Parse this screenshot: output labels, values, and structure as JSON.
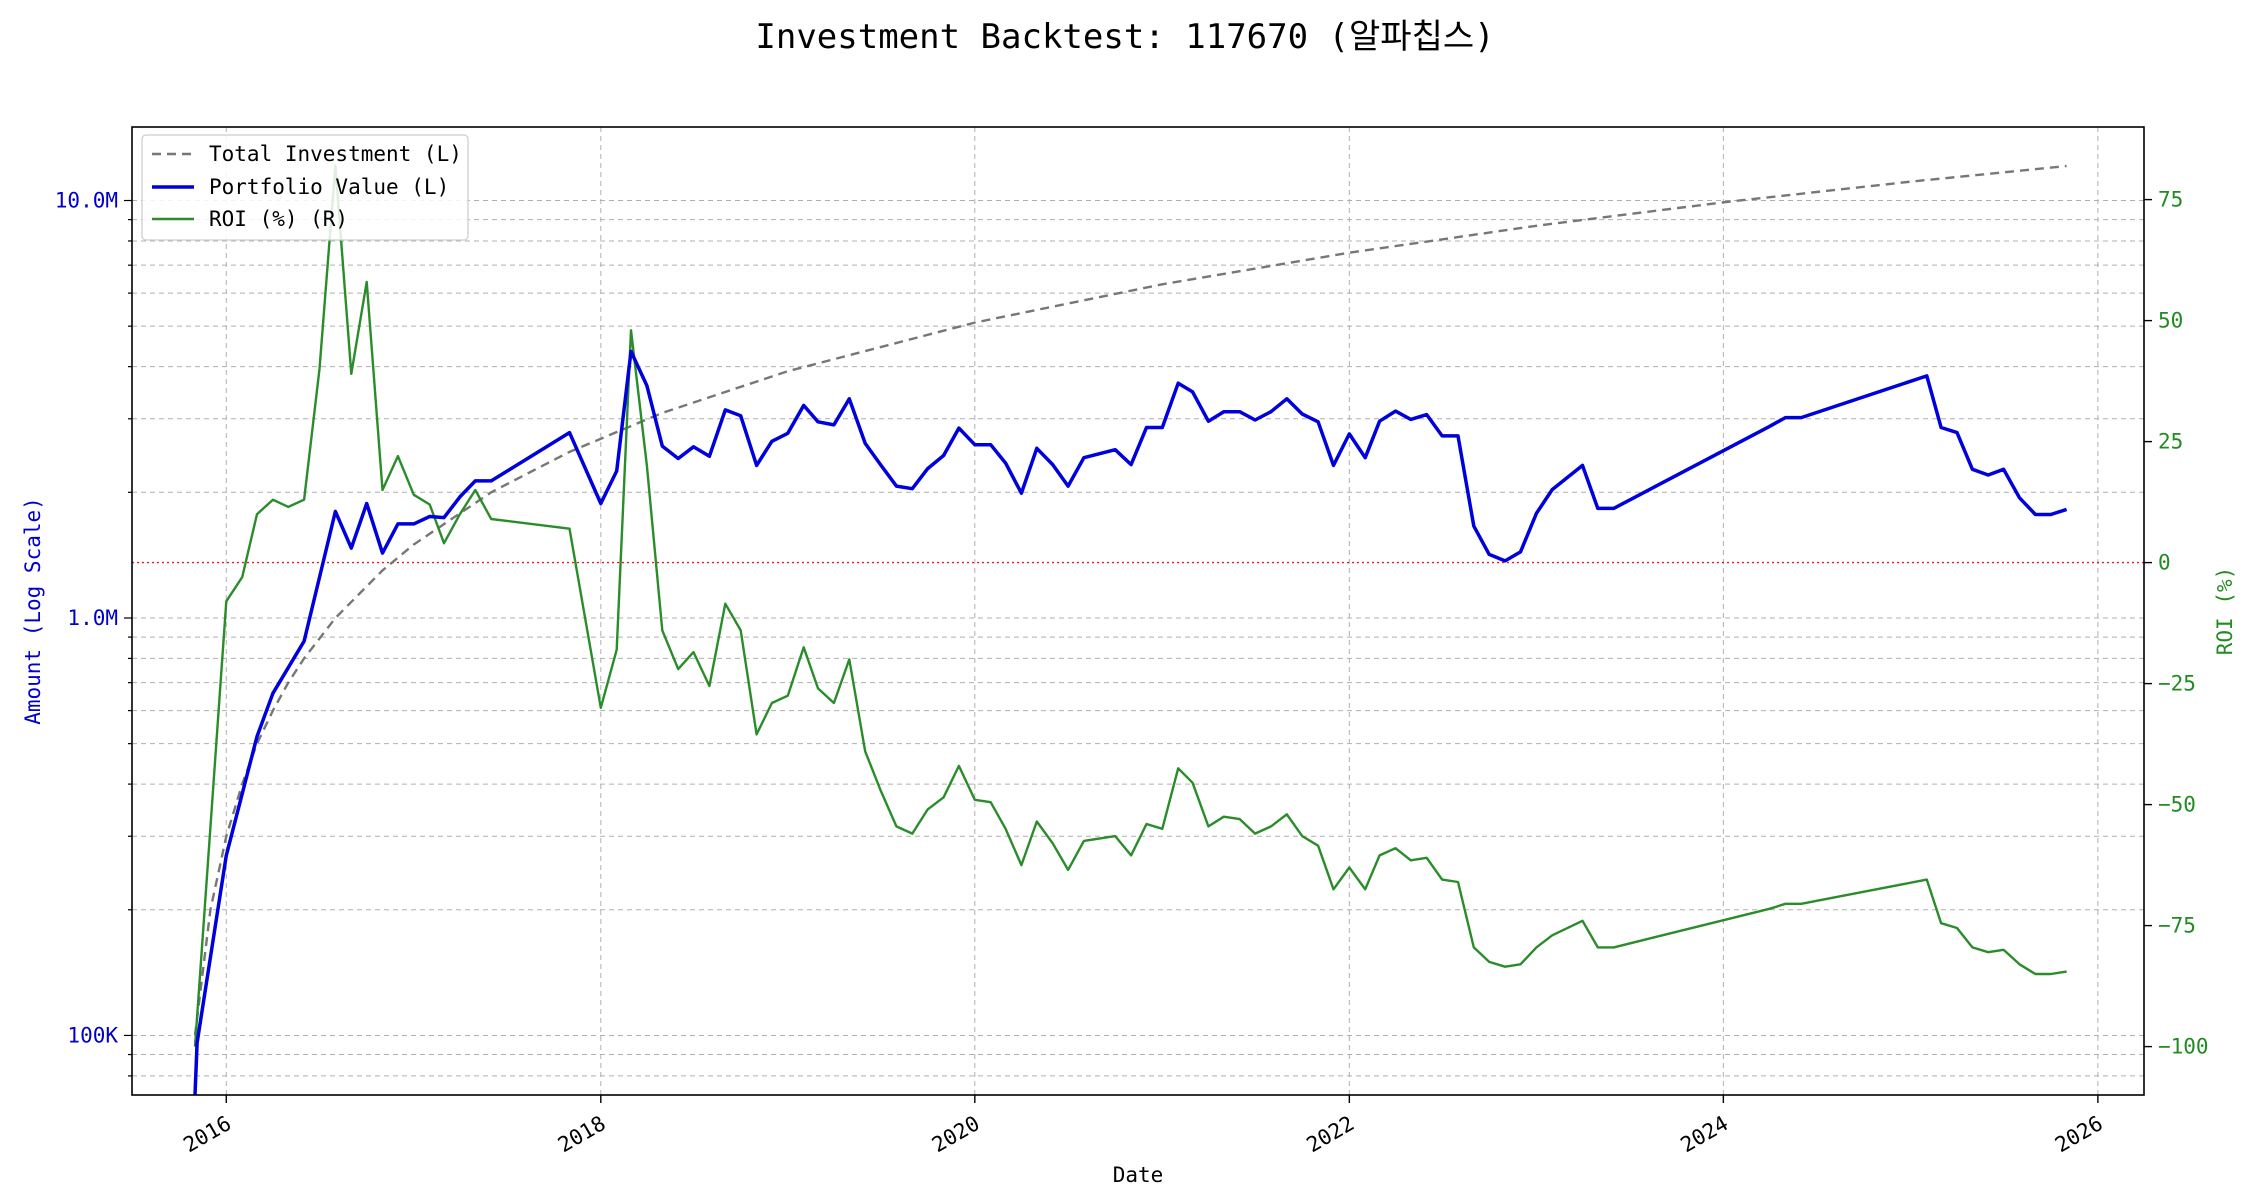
{
  "chart_data": {
    "type": "line",
    "title": "Investment Backtest: 117670 (알파칩스)",
    "xlabel": "Date",
    "ylabel_left": "Amount (Log Scale)",
    "ylabel_right": "ROI (%)",
    "x_range": [
      "2015-07-01",
      "2026-04-01"
    ],
    "ylim_left": [
      72000,
      15000000
    ],
    "yscale_left": "log",
    "ylim_right": [
      -110,
      90
    ],
    "grid": true,
    "legend_position": "top-left",
    "x_ticks": [
      "2016",
      "2018",
      "2020",
      "2022",
      "2024",
      "2026"
    ],
    "y_left_ticks": [
      {
        "value": 100000,
        "label": "100K"
      },
      {
        "value": 1000000,
        "label": "1.0M"
      },
      {
        "value": 10000000,
        "label": "10.0M"
      }
    ],
    "y_right_ticks": [
      {
        "value": 75,
        "label": "75"
      },
      {
        "value": 50,
        "label": "50"
      },
      {
        "value": 25,
        "label": "25"
      },
      {
        "value": 0,
        "label": "0"
      },
      {
        "value": -25,
        "label": "−25"
      },
      {
        "value": -50,
        "label": "−50"
      },
      {
        "value": -75,
        "label": "−75"
      },
      {
        "value": -100,
        "label": "−100"
      }
    ],
    "reference_line": {
      "axis": "right",
      "value": 0,
      "color": "#e41a1c",
      "style": "dotted"
    },
    "series": [
      {
        "name": "Total Investment (L)",
        "axis": "left",
        "color": "#777777",
        "style": "dashed",
        "points": [
          [
            "2015-11-01",
            100000
          ],
          [
            "2015-12-01",
            200000
          ],
          [
            "2016-01-01",
            300000
          ],
          [
            "2016-02-01",
            400000
          ],
          [
            "2016-03-01",
            500000
          ],
          [
            "2016-04-01",
            600000
          ],
          [
            "2016-05-01",
            700000
          ],
          [
            "2016-06-01",
            800000
          ],
          [
            "2016-08-01",
            1000000
          ],
          [
            "2016-11-01",
            1300000
          ],
          [
            "2017-01-01",
            1500000
          ],
          [
            "2017-06-01",
            2000000
          ],
          [
            "2017-11-01",
            2500000
          ],
          [
            "2018-05-01",
            3100000
          ],
          [
            "2019-01-01",
            3900000
          ],
          [
            "2020-01-01",
            5100000
          ],
          [
            "2021-01-01",
            6300000
          ],
          [
            "2022-01-01",
            7500000
          ],
          [
            "2023-01-01",
            8700000
          ],
          [
            "2024-01-01",
            9900000
          ],
          [
            "2025-01-01",
            11100000
          ],
          [
            "2025-11-01",
            12100000
          ]
        ]
      },
      {
        "name": "Portfolio Value (L)",
        "axis": "left",
        "color": "#0000dd",
        "style": "solid",
        "points": [
          [
            "2015-11-01",
            72000
          ],
          [
            "2015-11-05",
            96000
          ],
          [
            "2016-01-01",
            270000
          ],
          [
            "2016-03-01",
            520000
          ],
          [
            "2016-04-01",
            660000
          ],
          [
            "2016-06-01",
            880000
          ],
          [
            "2016-08-01",
            1800000
          ],
          [
            "2016-09-01",
            1470000
          ],
          [
            "2016-10-01",
            1880000
          ],
          [
            "2016-11-01",
            1430000
          ],
          [
            "2016-12-01",
            1680000
          ],
          [
            "2017-01-01",
            1680000
          ],
          [
            "2017-02-01",
            1750000
          ],
          [
            "2017-03-01",
            1740000
          ],
          [
            "2017-04-01",
            1950000
          ],
          [
            "2017-05-01",
            2130000
          ],
          [
            "2017-06-01",
            2130000
          ],
          [
            "2017-11-01",
            2780000
          ],
          [
            "2018-01-01",
            1880000
          ],
          [
            "2018-02-01",
            2250000
          ],
          [
            "2018-03-01",
            4350000
          ],
          [
            "2018-04-01",
            3600000
          ],
          [
            "2018-05-01",
            2580000
          ],
          [
            "2018-06-01",
            2410000
          ],
          [
            "2018-07-01",
            2570000
          ],
          [
            "2018-08-01",
            2440000
          ],
          [
            "2018-09-01",
            3150000
          ],
          [
            "2018-10-01",
            3050000
          ],
          [
            "2018-11-01",
            2320000
          ],
          [
            "2018-12-01",
            2650000
          ],
          [
            "2019-01-01",
            2770000
          ],
          [
            "2019-02-01",
            3230000
          ],
          [
            "2019-03-01",
            2950000
          ],
          [
            "2019-04-01",
            2900000
          ],
          [
            "2019-05-01",
            3350000
          ],
          [
            "2019-06-01",
            2620000
          ],
          [
            "2019-07-01",
            2330000
          ],
          [
            "2019-08-01",
            2070000
          ],
          [
            "2019-09-01",
            2040000
          ],
          [
            "2019-10-01",
            2280000
          ],
          [
            "2019-11-01",
            2450000
          ],
          [
            "2019-12-01",
            2850000
          ],
          [
            "2020-01-01",
            2600000
          ],
          [
            "2020-02-01",
            2600000
          ],
          [
            "2020-03-01",
            2350000
          ],
          [
            "2020-04-01",
            1990000
          ],
          [
            "2020-05-01",
            2550000
          ],
          [
            "2020-06-01",
            2330000
          ],
          [
            "2020-07-01",
            2070000
          ],
          [
            "2020-08-01",
            2420000
          ],
          [
            "2020-10-01",
            2530000
          ],
          [
            "2020-11-01",
            2330000
          ],
          [
            "2020-12-01",
            2860000
          ],
          [
            "2021-01-01",
            2860000
          ],
          [
            "2021-02-01",
            3650000
          ],
          [
            "2021-03-01",
            3480000
          ],
          [
            "2021-04-01",
            2960000
          ],
          [
            "2021-05-01",
            3120000
          ],
          [
            "2021-06-01",
            3120000
          ],
          [
            "2021-07-01",
            2980000
          ],
          [
            "2021-08-01",
            3120000
          ],
          [
            "2021-09-01",
            3350000
          ],
          [
            "2021-10-01",
            3080000
          ],
          [
            "2021-11-01",
            2950000
          ],
          [
            "2021-12-01",
            2320000
          ],
          [
            "2022-01-01",
            2760000
          ],
          [
            "2022-02-01",
            2420000
          ],
          [
            "2022-03-01",
            2960000
          ],
          [
            "2022-04-01",
            3130000
          ],
          [
            "2022-05-01",
            2990000
          ],
          [
            "2022-06-01",
            3070000
          ],
          [
            "2022-07-01",
            2730000
          ],
          [
            "2022-08-01",
            2730000
          ],
          [
            "2022-09-01",
            1660000
          ],
          [
            "2022-10-01",
            1420000
          ],
          [
            "2022-11-01",
            1370000
          ],
          [
            "2022-12-01",
            1440000
          ],
          [
            "2023-01-01",
            1780000
          ],
          [
            "2023-02-01",
            2030000
          ],
          [
            "2023-04-01",
            2320000
          ],
          [
            "2023-05-01",
            1830000
          ],
          [
            "2023-06-01",
            1830000
          ],
          [
            "2024-04-01",
            2880000
          ],
          [
            "2024-05-01",
            3020000
          ],
          [
            "2024-06-01",
            3020000
          ],
          [
            "2025-02-01",
            3800000
          ],
          [
            "2025-03-01",
            2860000
          ],
          [
            "2025-04-01",
            2780000
          ],
          [
            "2025-05-01",
            2270000
          ],
          [
            "2025-06-01",
            2200000
          ],
          [
            "2025-07-01",
            2270000
          ],
          [
            "2025-08-01",
            1940000
          ],
          [
            "2025-09-01",
            1770000
          ],
          [
            "2025-10-01",
            1770000
          ],
          [
            "2025-11-01",
            1820000
          ]
        ]
      },
      {
        "name": "ROI (%) (R)",
        "axis": "right",
        "color": "#2a8c2a",
        "style": "solid",
        "points": [
          [
            "2015-11-01",
            -100
          ],
          [
            "2016-01-01",
            -8
          ],
          [
            "2016-02-01",
            -3
          ],
          [
            "2016-03-01",
            10
          ],
          [
            "2016-04-01",
            13
          ],
          [
            "2016-05-01",
            11.5
          ],
          [
            "2016-06-01",
            13
          ],
          [
            "2016-07-01",
            40
          ],
          [
            "2016-08-01",
            82
          ],
          [
            "2016-09-01",
            39
          ],
          [
            "2016-10-01",
            58
          ],
          [
            "2016-11-01",
            15
          ],
          [
            "2016-12-01",
            22
          ],
          [
            "2017-01-01",
            14
          ],
          [
            "2017-02-01",
            12
          ],
          [
            "2017-03-01",
            4
          ],
          [
            "2017-04-01",
            10
          ],
          [
            "2017-05-01",
            15
          ],
          [
            "2017-06-01",
            9
          ],
          [
            "2017-11-01",
            7
          ],
          [
            "2018-01-01",
            -30
          ],
          [
            "2018-02-01",
            -18
          ],
          [
            "2018-03-01",
            48
          ],
          [
            "2018-04-01",
            20
          ],
          [
            "2018-05-01",
            -14
          ],
          [
            "2018-06-01",
            -22
          ],
          [
            "2018-07-01",
            -18.5
          ],
          [
            "2018-08-01",
            -25.5
          ],
          [
            "2018-09-01",
            -8.5
          ],
          [
            "2018-10-01",
            -14
          ],
          [
            "2018-11-01",
            -35.5
          ],
          [
            "2018-12-01",
            -29
          ],
          [
            "2019-01-01",
            -27.5
          ],
          [
            "2019-02-01",
            -17.5
          ],
          [
            "2019-03-01",
            -26
          ],
          [
            "2019-04-01",
            -29
          ],
          [
            "2019-05-01",
            -20
          ],
          [
            "2019-06-01",
            -39
          ],
          [
            "2019-07-01",
            -47
          ],
          [
            "2019-08-01",
            -54.5
          ],
          [
            "2019-09-01",
            -56
          ],
          [
            "2019-10-01",
            -51
          ],
          [
            "2019-11-01",
            -48.5
          ],
          [
            "2019-12-01",
            -42
          ],
          [
            "2020-01-01",
            -49
          ],
          [
            "2020-02-01",
            -49.5
          ],
          [
            "2020-03-01",
            -55
          ],
          [
            "2020-04-01",
            -62.5
          ],
          [
            "2020-05-01",
            -53.5
          ],
          [
            "2020-06-01",
            -58
          ],
          [
            "2020-07-01",
            -63.5
          ],
          [
            "2020-08-01",
            -57.5
          ],
          [
            "2020-10-01",
            -56.5
          ],
          [
            "2020-11-01",
            -60.5
          ],
          [
            "2020-12-01",
            -54
          ],
          [
            "2021-01-01",
            -55
          ],
          [
            "2021-02-01",
            -42.5
          ],
          [
            "2021-03-01",
            -45.5
          ],
          [
            "2021-04-01",
            -54.5
          ],
          [
            "2021-05-01",
            -52.5
          ],
          [
            "2021-06-01",
            -53
          ],
          [
            "2021-07-01",
            -56
          ],
          [
            "2021-08-01",
            -54.5
          ],
          [
            "2021-09-01",
            -52
          ],
          [
            "2021-10-01",
            -56.5
          ],
          [
            "2021-11-01",
            -58.5
          ],
          [
            "2021-12-01",
            -67.5
          ],
          [
            "2022-01-01",
            -63
          ],
          [
            "2022-02-01",
            -67.5
          ],
          [
            "2022-03-01",
            -60.5
          ],
          [
            "2022-04-01",
            -59
          ],
          [
            "2022-05-01",
            -61.5
          ],
          [
            "2022-06-01",
            -61
          ],
          [
            "2022-07-01",
            -65.5
          ],
          [
            "2022-08-01",
            -66
          ],
          [
            "2022-09-01",
            -79.5
          ],
          [
            "2022-10-01",
            -82.5
          ],
          [
            "2022-11-01",
            -83.5
          ],
          [
            "2022-12-01",
            -83
          ],
          [
            "2023-01-01",
            -79.5
          ],
          [
            "2023-02-01",
            -77
          ],
          [
            "2023-04-01",
            -74
          ],
          [
            "2023-05-01",
            -79.5
          ],
          [
            "2023-06-01",
            -79.5
          ],
          [
            "2024-04-01",
            -71.5
          ],
          [
            "2024-05-01",
            -70.5
          ],
          [
            "2024-06-01",
            -70.5
          ],
          [
            "2025-02-01",
            -65.5
          ],
          [
            "2025-03-01",
            -74.5
          ],
          [
            "2025-04-01",
            -75.5
          ],
          [
            "2025-05-01",
            -79.5
          ],
          [
            "2025-06-01",
            -80.5
          ],
          [
            "2025-07-01",
            -80
          ],
          [
            "2025-08-01",
            -83
          ],
          [
            "2025-09-01",
            -85
          ],
          [
            "2025-10-01",
            -85
          ],
          [
            "2025-11-01",
            -84.5
          ]
        ]
      }
    ]
  }
}
